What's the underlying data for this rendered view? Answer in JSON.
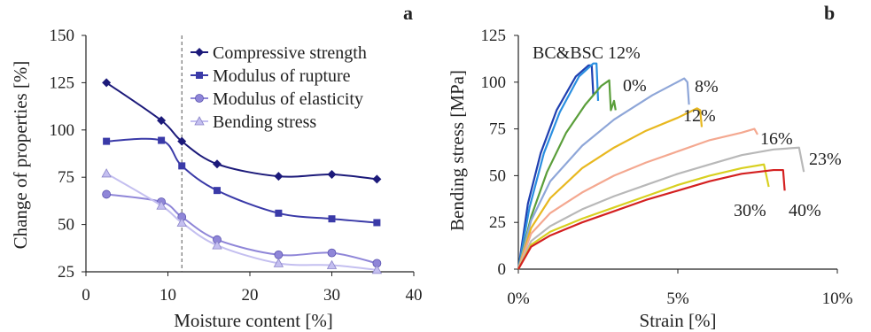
{
  "chart_data": [
    {
      "panel": "a",
      "type": "line",
      "xlabel": "Moisture content [%]",
      "ylabel": "Change of properties [%]",
      "xlim": [
        0,
        40
      ],
      "ylim": [
        25,
        150
      ],
      "xticks": [
        "0",
        "10",
        "20",
        "30",
        "40"
      ],
      "yticks": [
        "25",
        "50",
        "75",
        "100",
        "125",
        "150"
      ],
      "grid": false,
      "legend_position": "top-right",
      "reference_line_x": 11.7,
      "x": [
        2.5,
        9.2,
        11.7,
        16.0,
        23.5,
        30.0,
        35.5
      ],
      "series": [
        {
          "name": "Compressive strength",
          "marker": "diamond",
          "color": "#1c1a7a",
          "values": [
            125,
            105,
            94,
            82,
            75.5,
            76.5,
            74
          ]
        },
        {
          "name": "Modulus of rupture",
          "marker": "square",
          "color": "#3a3aa8",
          "values": [
            94,
            94.5,
            81,
            68,
            56,
            53,
            51
          ]
        },
        {
          "name": "Modulus of elasticity",
          "marker": "circle",
          "color": "#8f86d8",
          "values": [
            66,
            62,
            54,
            42,
            34,
            35,
            29.5
          ]
        },
        {
          "name": "Bending stress",
          "marker": "triangle",
          "color": "#c4bff0",
          "values": [
            77,
            60,
            51,
            39,
            29.5,
            28.5,
            26
          ]
        }
      ]
    },
    {
      "panel": "b",
      "type": "line",
      "xlabel": "Strain [%]",
      "ylabel": "Bending stress [MPa]",
      "xlim": [
        0,
        10
      ],
      "ylim": [
        0,
        125
      ],
      "xticks": [
        "0%",
        "5%",
        "10%"
      ],
      "yticks": [
        "0",
        "25",
        "50",
        "75",
        "100",
        "125"
      ],
      "grid": false,
      "series": [
        {
          "name": "BC&BSC 12%",
          "color": "#1f3fb0",
          "points": [
            [
              0,
              0
            ],
            [
              0.3,
              35
            ],
            [
              0.7,
              62
            ],
            [
              1.2,
              85
            ],
            [
              1.8,
              103
            ],
            [
              2.2,
              109
            ],
            [
              2.3,
              109
            ],
            [
              2.35,
              93
            ]
          ]
        },
        {
          "name": "BC&BSC 12%",
          "color": "#2a8fe0",
          "points": [
            [
              0,
              0
            ],
            [
              0.35,
              33
            ],
            [
              0.8,
              62
            ],
            [
              1.3,
              84
            ],
            [
              1.9,
              103
            ],
            [
              2.35,
              110
            ],
            [
              2.45,
              110
            ],
            [
              2.5,
              90
            ]
          ]
        },
        {
          "name": "0%",
          "color": "#5a9e3a",
          "points": [
            [
              0,
              0
            ],
            [
              0.4,
              28
            ],
            [
              0.9,
              52
            ],
            [
              1.5,
              73
            ],
            [
              2.1,
              88
            ],
            [
              2.6,
              98
            ],
            [
              2.85,
              101
            ],
            [
              2.9,
              85
            ],
            [
              3.0,
              90
            ],
            [
              3.05,
              85
            ]
          ]
        },
        {
          "name": "8%",
          "color": "#8ea6d8",
          "points": [
            [
              0,
              0
            ],
            [
              0.4,
              26
            ],
            [
              1.0,
              47
            ],
            [
              2.0,
              66
            ],
            [
              3.0,
              80
            ],
            [
              4.2,
              93
            ],
            [
              5.2,
              102
            ],
            [
              5.3,
              100
            ],
            [
              5.35,
              88
            ]
          ]
        },
        {
          "name": "12%",
          "color": "#e8b820",
          "points": [
            [
              0,
              0
            ],
            [
              0.4,
              22
            ],
            [
              1.0,
              38
            ],
            [
              2.0,
              54
            ],
            [
              3.0,
              65
            ],
            [
              4.0,
              74
            ],
            [
              5.0,
              81
            ],
            [
              5.6,
              86
            ],
            [
              5.7,
              85
            ],
            [
              5.75,
              76
            ]
          ]
        },
        {
          "name": "16%",
          "color": "#f4a890",
          "points": [
            [
              0,
              0
            ],
            [
              0.4,
              19
            ],
            [
              1.0,
              30
            ],
            [
              2.0,
              41
            ],
            [
              3.0,
              50
            ],
            [
              4.0,
              57
            ],
            [
              5.0,
              63
            ],
            [
              6.0,
              69
            ],
            [
              7.0,
              73
            ],
            [
              7.4,
              75
            ],
            [
              7.5,
              72
            ]
          ]
        },
        {
          "name": "23%",
          "color": "#b8b8b8",
          "points": [
            [
              0,
              0
            ],
            [
              0.4,
              15
            ],
            [
              1.0,
              23
            ],
            [
              2.0,
              32
            ],
            [
              3.0,
              39
            ],
            [
              4.0,
              45
            ],
            [
              5.0,
              51
            ],
            [
              6.0,
              56
            ],
            [
              7.0,
              61
            ],
            [
              8.0,
              64
            ],
            [
              8.8,
              65
            ],
            [
              8.95,
              52
            ]
          ]
        },
        {
          "name": "30%",
          "color": "#d8d020",
          "points": [
            [
              0,
              0
            ],
            [
              0.4,
              13
            ],
            [
              1.0,
              20
            ],
            [
              2.0,
              27
            ],
            [
              3.0,
              33
            ],
            [
              4.0,
              39
            ],
            [
              5.0,
              45
            ],
            [
              6.0,
              50
            ],
            [
              7.0,
              54
            ],
            [
              7.7,
              56
            ],
            [
              7.85,
              44
            ]
          ]
        },
        {
          "name": "40%",
          "color": "#d42020",
          "points": [
            [
              0,
              0
            ],
            [
              0.4,
              12
            ],
            [
              1.0,
              18
            ],
            [
              2.0,
              25
            ],
            [
              3.0,
              31
            ],
            [
              4.0,
              37
            ],
            [
              5.0,
              42
            ],
            [
              6.0,
              47
            ],
            [
              7.0,
              51
            ],
            [
              8.0,
              53
            ],
            [
              8.3,
              53
            ],
            [
              8.35,
              42
            ]
          ]
        }
      ],
      "curve_labels": [
        "BC&BSC 12%",
        "0%",
        "8%",
        "12%",
        "16%",
        "23%",
        "30%",
        "40%"
      ]
    }
  ],
  "panel_letters": {
    "a": "a",
    "b": "b"
  }
}
